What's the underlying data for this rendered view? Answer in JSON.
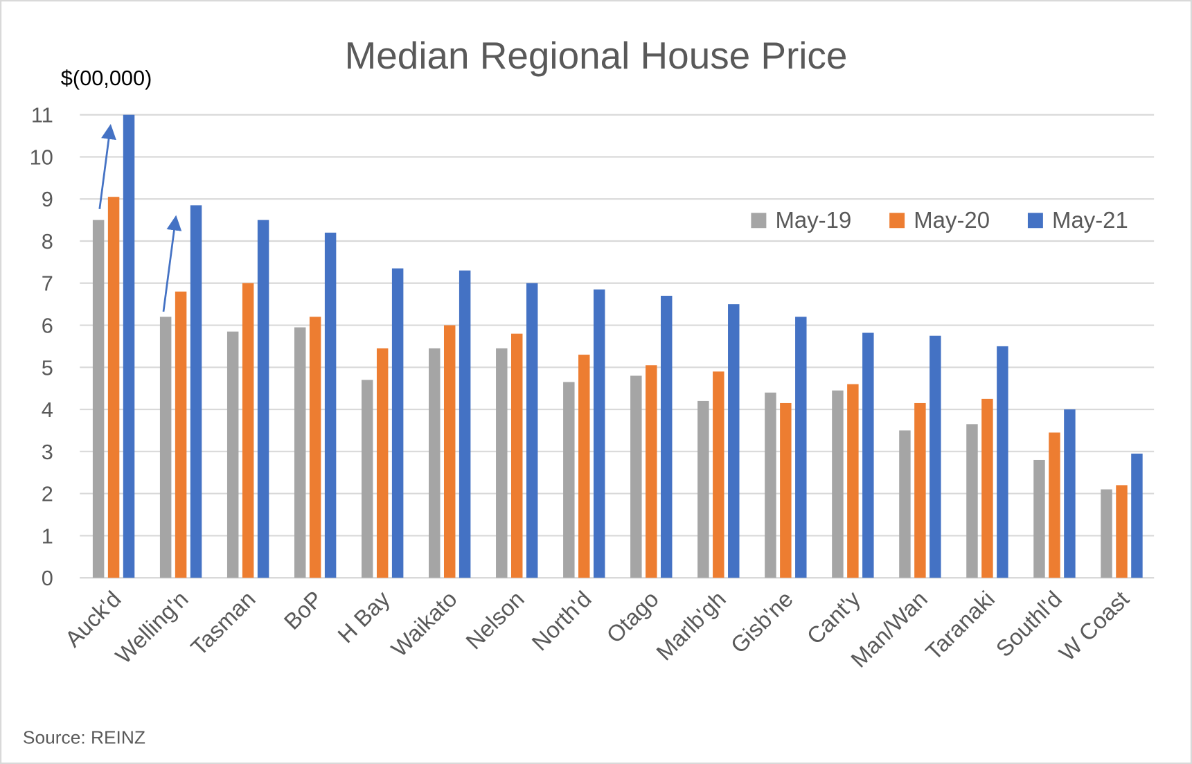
{
  "chart_data": {
    "type": "bar",
    "title": "Median Regional House Price",
    "ylabel": "$(00,000)",
    "xlabel": "",
    "ylim": [
      0,
      11
    ],
    "yticks": [
      0,
      1,
      2,
      3,
      4,
      5,
      6,
      7,
      8,
      9,
      10,
      11
    ],
    "grid": true,
    "legend_position": "top-right",
    "categories": [
      "Auck'd",
      "Welling'n",
      "Tasman",
      "BoP",
      "H Bay",
      "Waikato",
      "Nelson",
      "North'd",
      "Otago",
      "Marlb'gh",
      "Gisb'ne",
      "Cant'y",
      "Man/Wan",
      "Taranaki",
      "Southl'd",
      "W Coast"
    ],
    "series": [
      {
        "name": "May-19",
        "color": "#a5a5a5",
        "values": [
          8.5,
          6.2,
          5.85,
          5.95,
          4.7,
          5.45,
          5.45,
          4.65,
          4.8,
          4.2,
          4.4,
          4.45,
          3.5,
          3.65,
          2.8,
          2.1
        ]
      },
      {
        "name": "May-20",
        "color": "#ed7d31",
        "values": [
          9.05,
          6.8,
          7.0,
          6.2,
          5.45,
          6.0,
          5.8,
          5.3,
          5.05,
          4.9,
          4.15,
          4.6,
          4.15,
          4.25,
          3.45,
          2.2
        ]
      },
      {
        "name": "May-21",
        "color": "#4472c4",
        "values": [
          11.0,
          8.85,
          8.5,
          8.2,
          7.35,
          7.3,
          7.0,
          6.85,
          6.7,
          6.5,
          6.2,
          5.82,
          5.75,
          5.5,
          4.0,
          2.95
        ]
      }
    ],
    "annotations": [
      {
        "type": "arrow",
        "category": "Auck'd",
        "from": "May-19",
        "to": "May-21",
        "color": "#4472c4"
      },
      {
        "type": "arrow",
        "category": "Welling'n",
        "from": "May-19",
        "to": "May-21",
        "color": "#4472c4"
      }
    ],
    "source": "Source: REINZ"
  }
}
